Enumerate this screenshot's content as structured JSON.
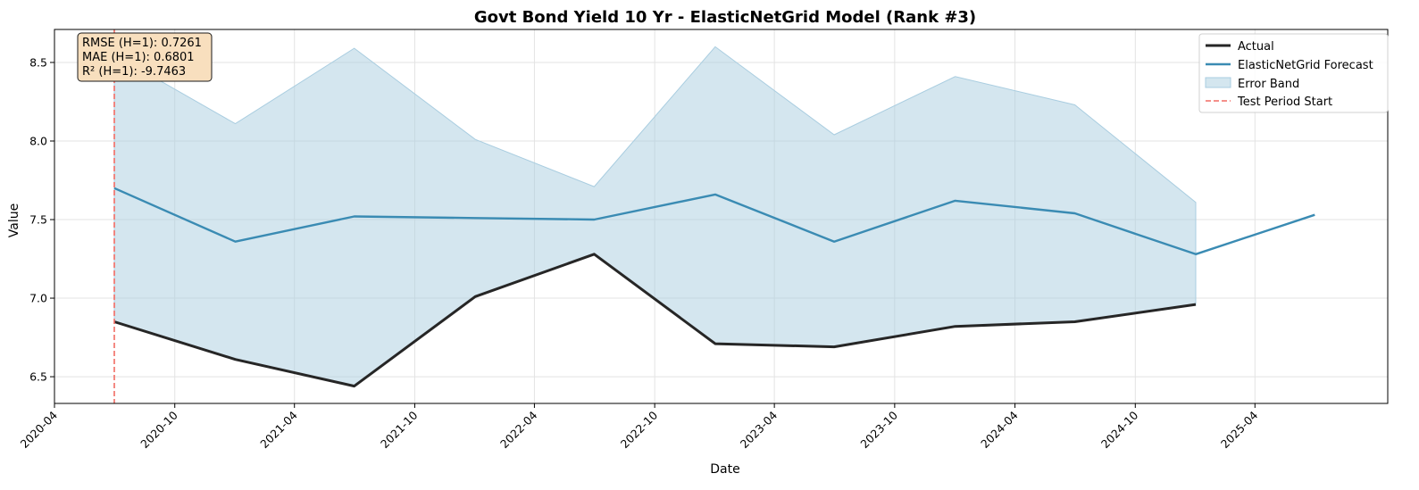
{
  "chart_data": {
    "type": "line",
    "title": "Govt Bond Yield 10 Yr - ElasticNetGrid Model (Rank #3)",
    "xlabel": "Date",
    "ylabel": "Value",
    "xlim": [
      "2020-04-01",
      "2025-10-20"
    ],
    "ylim": [
      6.33,
      8.71
    ],
    "x_ticks": [
      "2020-04",
      "2020-10",
      "2021-04",
      "2021-10",
      "2022-04",
      "2022-10",
      "2023-04",
      "2023-10",
      "2024-04",
      "2024-10",
      "2025-04"
    ],
    "y_ticks": [
      6.5,
      7.0,
      7.5,
      8.0,
      8.5
    ],
    "grid": true,
    "legend_position": "top-right",
    "series": [
      {
        "name": "Actual",
        "color": "#262626",
        "x": [
          "2020-07-01",
          "2021-01-01",
          "2021-07-01",
          "2022-01-01",
          "2022-07-01",
          "2023-01-01",
          "2023-07-01",
          "2024-01-01",
          "2024-07-01",
          "2025-01-01"
        ],
        "values": [
          6.85,
          6.61,
          6.44,
          7.01,
          7.28,
          6.71,
          6.69,
          6.82,
          6.85,
          6.96
        ]
      },
      {
        "name": "ElasticNetGrid Forecast",
        "color": "#3a8bb3",
        "x": [
          "2020-07-01",
          "2021-01-01",
          "2021-07-01",
          "2022-01-01",
          "2022-07-01",
          "2023-01-01",
          "2023-07-01",
          "2024-01-01",
          "2024-07-01",
          "2025-01-01",
          "2025-07-01"
        ],
        "values": [
          7.7,
          7.36,
          7.52,
          7.51,
          7.5,
          7.66,
          7.36,
          7.62,
          7.54,
          7.28,
          7.53
        ]
      }
    ],
    "error_band": {
      "name": "Error Band",
      "color": "#a9cde0",
      "x": [
        "2020-07-01",
        "2021-01-01",
        "2021-07-01",
        "2022-01-01",
        "2022-07-01",
        "2023-01-01",
        "2023-07-01",
        "2024-01-01",
        "2024-07-01",
        "2025-01-01"
      ],
      "upper": [
        8.55,
        8.11,
        8.59,
        8.01,
        7.71,
        8.6,
        8.04,
        8.41,
        8.23,
        7.61
      ],
      "lower": [
        6.85,
        6.61,
        6.44,
        7.01,
        7.28,
        6.71,
        6.69,
        6.82,
        6.85,
        6.96
      ]
    },
    "vline": {
      "name": "Test Period Start",
      "x": "2020-07-01",
      "color": "#f26b63"
    },
    "annotation": [
      "RMSE (H=1): 0.7261",
      "MAE (H=1): 0.6801",
      "R² (H=1): -9.7463"
    ]
  }
}
